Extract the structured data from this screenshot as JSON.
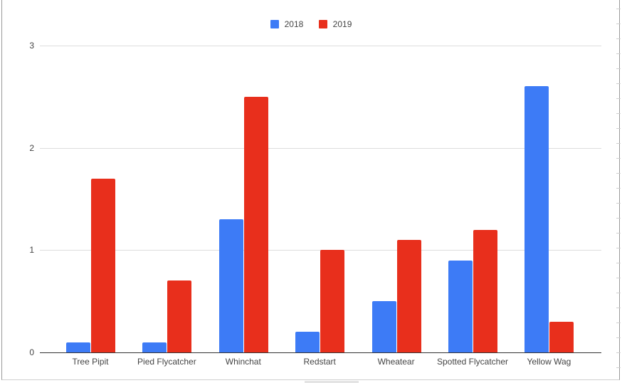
{
  "legend": [
    {
      "label": "2018",
      "color": "#3d7bf6"
    },
    {
      "label": "2019",
      "color": "#e82f1c"
    }
  ],
  "y_ticks": [
    "0",
    "1",
    "2",
    "3"
  ],
  "chart_data": {
    "type": "bar",
    "title": "",
    "xlabel": "",
    "ylabel": "",
    "categories": [
      "Tree Pipit",
      "Pied Flycatcher",
      "Whinchat",
      "Redstart",
      "Wheatear",
      "Spotted Flycatcher",
      "Yellow Wag"
    ],
    "series": [
      {
        "name": "2018",
        "color": "#3d7bf6",
        "values": [
          0.1,
          0.1,
          1.3,
          0.2,
          0.5,
          0.9,
          2.6
        ]
      },
      {
        "name": "2019",
        "color": "#e82f1c",
        "values": [
          1.7,
          0.7,
          2.5,
          1.0,
          1.1,
          1.2,
          0.3
        ]
      }
    ],
    "ylim": [
      0,
      3
    ],
    "y_ticks": [
      0,
      1,
      2,
      3
    ],
    "grid": true,
    "legend_position": "top"
  }
}
